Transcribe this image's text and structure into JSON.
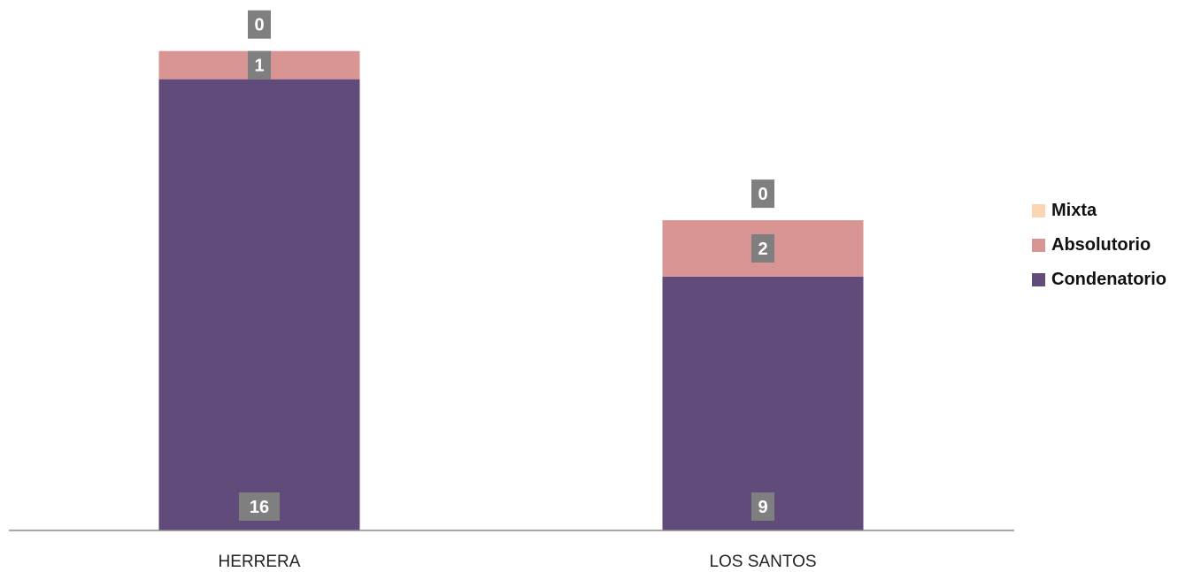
{
  "chart_data": {
    "type": "bar",
    "stacked": true,
    "categories": [
      "HERRERA",
      "LOS SANTOS"
    ],
    "series": [
      {
        "name": "Condenatorio",
        "values": [
          16,
          9
        ],
        "color": "#604b7b"
      },
      {
        "name": "Absolutorio",
        "values": [
          1,
          2
        ],
        "color": "#d99594"
      },
      {
        "name": "Mixta",
        "values": [
          0,
          0
        ],
        "color": "#fbd4b4"
      }
    ],
    "legend_order": [
      "Mixta",
      "Absolutorio",
      "Condenatorio"
    ],
    "legend_position": "right",
    "data_labels": true,
    "data_label_color": "#7f7f7f",
    "ylim": [
      0,
      17
    ],
    "grid": false
  }
}
